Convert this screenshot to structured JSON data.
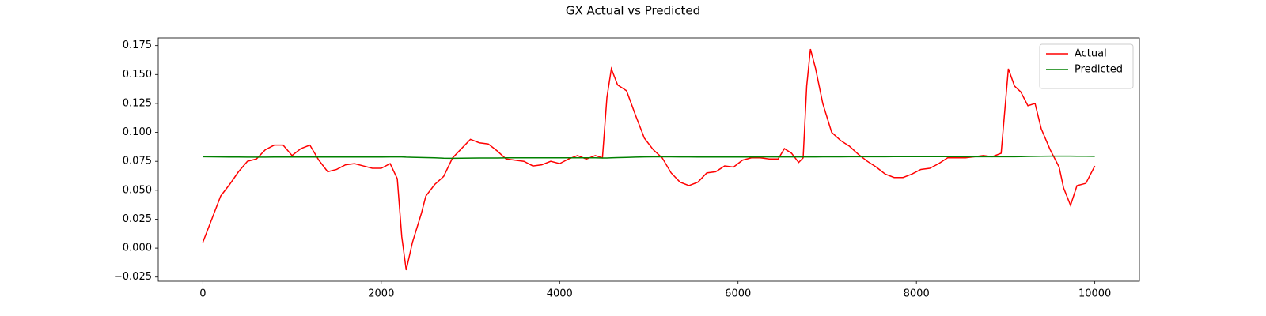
{
  "chart_data": {
    "type": "line",
    "title": "GX Actual vs Predicted",
    "x": [
      0,
      100,
      200,
      300,
      400,
      500,
      600,
      700,
      800,
      900,
      1000,
      1100,
      1200,
      1300,
      1400,
      1500,
      1600,
      1700,
      1800,
      1900,
      2000,
      2100,
      2180,
      2230,
      2280,
      2350,
      2450,
      2500,
      2600,
      2700,
      2800,
      2900,
      3000,
      3100,
      3200,
      3300,
      3400,
      3500,
      3600,
      3700,
      3800,
      3900,
      4000,
      4100,
      4200,
      4300,
      4400,
      4480,
      4530,
      4580,
      4650,
      4750,
      4850,
      4950,
      5050,
      5150,
      5250,
      5350,
      5450,
      5550,
      5650,
      5750,
      5850,
      5950,
      6050,
      6150,
      6250,
      6350,
      6450,
      6520,
      6600,
      6680,
      6730,
      6770,
      6812,
      6870,
      6950,
      7050,
      7150,
      7250,
      7350,
      7450,
      7550,
      7650,
      7750,
      7850,
      7950,
      8050,
      8150,
      8250,
      8350,
      8450,
      8550,
      8650,
      8750,
      8850,
      8950,
      9031,
      9100,
      9170,
      9250,
      9330,
      9400,
      9500,
      9600,
      9650,
      9728,
      9800,
      9900,
      10000
    ],
    "series": [
      {
        "name": "Actual",
        "color": "#ff0000",
        "values": [
          0.005,
          0.025,
          0.045,
          0.055,
          0.066,
          0.075,
          0.077,
          0.085,
          0.089,
          0.089,
          0.08,
          0.086,
          0.089,
          0.076,
          0.066,
          0.068,
          0.072,
          0.073,
          0.071,
          0.069,
          0.069,
          0.073,
          0.06,
          0.01,
          -0.019,
          0.005,
          0.03,
          0.045,
          0.055,
          0.062,
          0.078,
          0.086,
          0.094,
          0.091,
          0.09,
          0.084,
          0.077,
          0.076,
          0.075,
          0.071,
          0.072,
          0.075,
          0.073,
          0.077,
          0.08,
          0.077,
          0.08,
          0.078,
          0.13,
          0.155,
          0.141,
          0.136,
          0.115,
          0.095,
          0.085,
          0.078,
          0.065,
          0.057,
          0.054,
          0.057,
          0.065,
          0.066,
          0.071,
          0.07,
          0.076,
          0.078,
          0.078,
          0.077,
          0.077,
          0.086,
          0.082,
          0.074,
          0.078,
          0.14,
          0.172,
          0.155,
          0.125,
          0.1,
          0.093,
          0.088,
          0.081,
          0.075,
          0.07,
          0.064,
          0.061,
          0.061,
          0.064,
          0.068,
          0.069,
          0.073,
          0.078,
          0.078,
          0.078,
          0.079,
          0.08,
          0.079,
          0.082,
          0.155,
          0.14,
          0.135,
          0.123,
          0.125,
          0.103,
          0.085,
          0.07,
          0.052,
          0.037,
          0.054,
          0.056,
          0.071
        ]
      },
      {
        "name": "Predicted",
        "color": "#008000",
        "values": [
          0.079,
          0.0789,
          0.0788,
          0.0787,
          0.0787,
          0.0786,
          0.0786,
          0.0786,
          0.0787,
          0.0787,
          0.0787,
          0.0787,
          0.0787,
          0.0787,
          0.0787,
          0.0787,
          0.0787,
          0.0787,
          0.0787,
          0.0787,
          0.0787,
          0.0788,
          0.0788,
          0.0788,
          0.0786,
          0.0785,
          0.0783,
          0.0782,
          0.078,
          0.0777,
          0.0776,
          0.0777,
          0.0778,
          0.0779,
          0.0779,
          0.0779,
          0.078,
          0.078,
          0.078,
          0.078,
          0.078,
          0.078,
          0.078,
          0.078,
          0.078,
          0.078,
          0.078,
          0.0779,
          0.0779,
          0.078,
          0.0782,
          0.0784,
          0.0786,
          0.0788,
          0.0789,
          0.0789,
          0.0789,
          0.0788,
          0.0788,
          0.0787,
          0.0787,
          0.0787,
          0.0787,
          0.0787,
          0.0787,
          0.0787,
          0.0788,
          0.0788,
          0.0788,
          0.0788,
          0.0788,
          0.0788,
          0.0788,
          0.0788,
          0.0788,
          0.0788,
          0.0789,
          0.0789,
          0.0789,
          0.079,
          0.079,
          0.079,
          0.079,
          0.079,
          0.0791,
          0.0791,
          0.0791,
          0.0791,
          0.0791,
          0.0791,
          0.0791,
          0.0791,
          0.079,
          0.079,
          0.079,
          0.079,
          0.079,
          0.079,
          0.079,
          0.0791,
          0.0792,
          0.0793,
          0.0794,
          0.0795,
          0.0795,
          0.0795,
          0.0795,
          0.0794,
          0.0794,
          0.0793
        ]
      }
    ],
    "xlim": [
      -500,
      10500
    ],
    "xticks": [
      0,
      2000,
      4000,
      6000,
      8000,
      10000
    ],
    "ylim": [
      -0.0286,
      0.1816
    ],
    "yticks": [
      {
        "value": -0.025,
        "label": "−0.025"
      },
      {
        "value": 0,
        "label": "0.000"
      },
      {
        "value": 0.025,
        "label": "0.025"
      },
      {
        "value": 0.05,
        "label": "0.050"
      },
      {
        "value": 0.075,
        "label": "0.075"
      },
      {
        "value": 0.1,
        "label": "0.100"
      },
      {
        "value": 0.125,
        "label": "0.125"
      },
      {
        "value": 0.15,
        "label": "0.150"
      },
      {
        "value": 0.175,
        "label": "0.175"
      }
    ],
    "legend": "upper right",
    "grid": false
  }
}
